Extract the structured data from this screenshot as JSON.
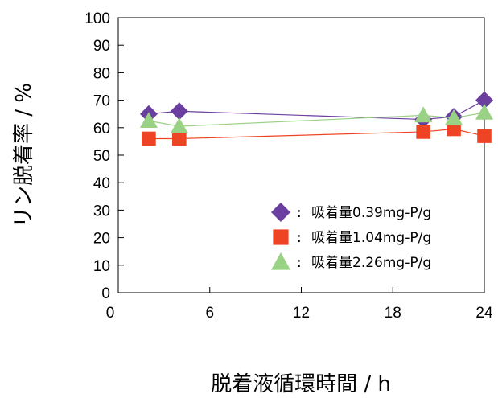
{
  "chart_data": {
    "type": "line",
    "xlabel": "脱着液循環時間 / h",
    "ylabel": "リン脱着率 / %",
    "xlim": [
      0,
      24
    ],
    "ylim": [
      0,
      100
    ],
    "xticks": [
      "0",
      "6",
      "12",
      "18",
      "24"
    ],
    "yticks": [
      "0",
      "10",
      "20",
      "30",
      "40",
      "50",
      "60",
      "70",
      "80",
      "90",
      "100"
    ],
    "grid": false,
    "legend_position": "bottom-right",
    "legend_separator": ":",
    "series": [
      {
        "name": "吸着量0.39mg-P/g",
        "marker": "diamond",
        "color": "#6b3fa0",
        "x": [
          2,
          4,
          20,
          22,
          24
        ],
        "y": [
          65,
          66,
          63,
          64,
          70
        ]
      },
      {
        "name": "吸着量1.04mg-P/g",
        "marker": "square",
        "color": "#ee4423",
        "x": [
          2,
          4,
          20,
          22,
          24
        ],
        "y": [
          56,
          56,
          58.5,
          59.5,
          57
        ]
      },
      {
        "name": "吸着量2.26mg-P/g",
        "marker": "triangle",
        "color": "#99d185",
        "x": [
          2,
          4,
          20,
          22,
          24
        ],
        "y": [
          62.5,
          60.5,
          64.5,
          63.5,
          65.5
        ]
      }
    ]
  }
}
